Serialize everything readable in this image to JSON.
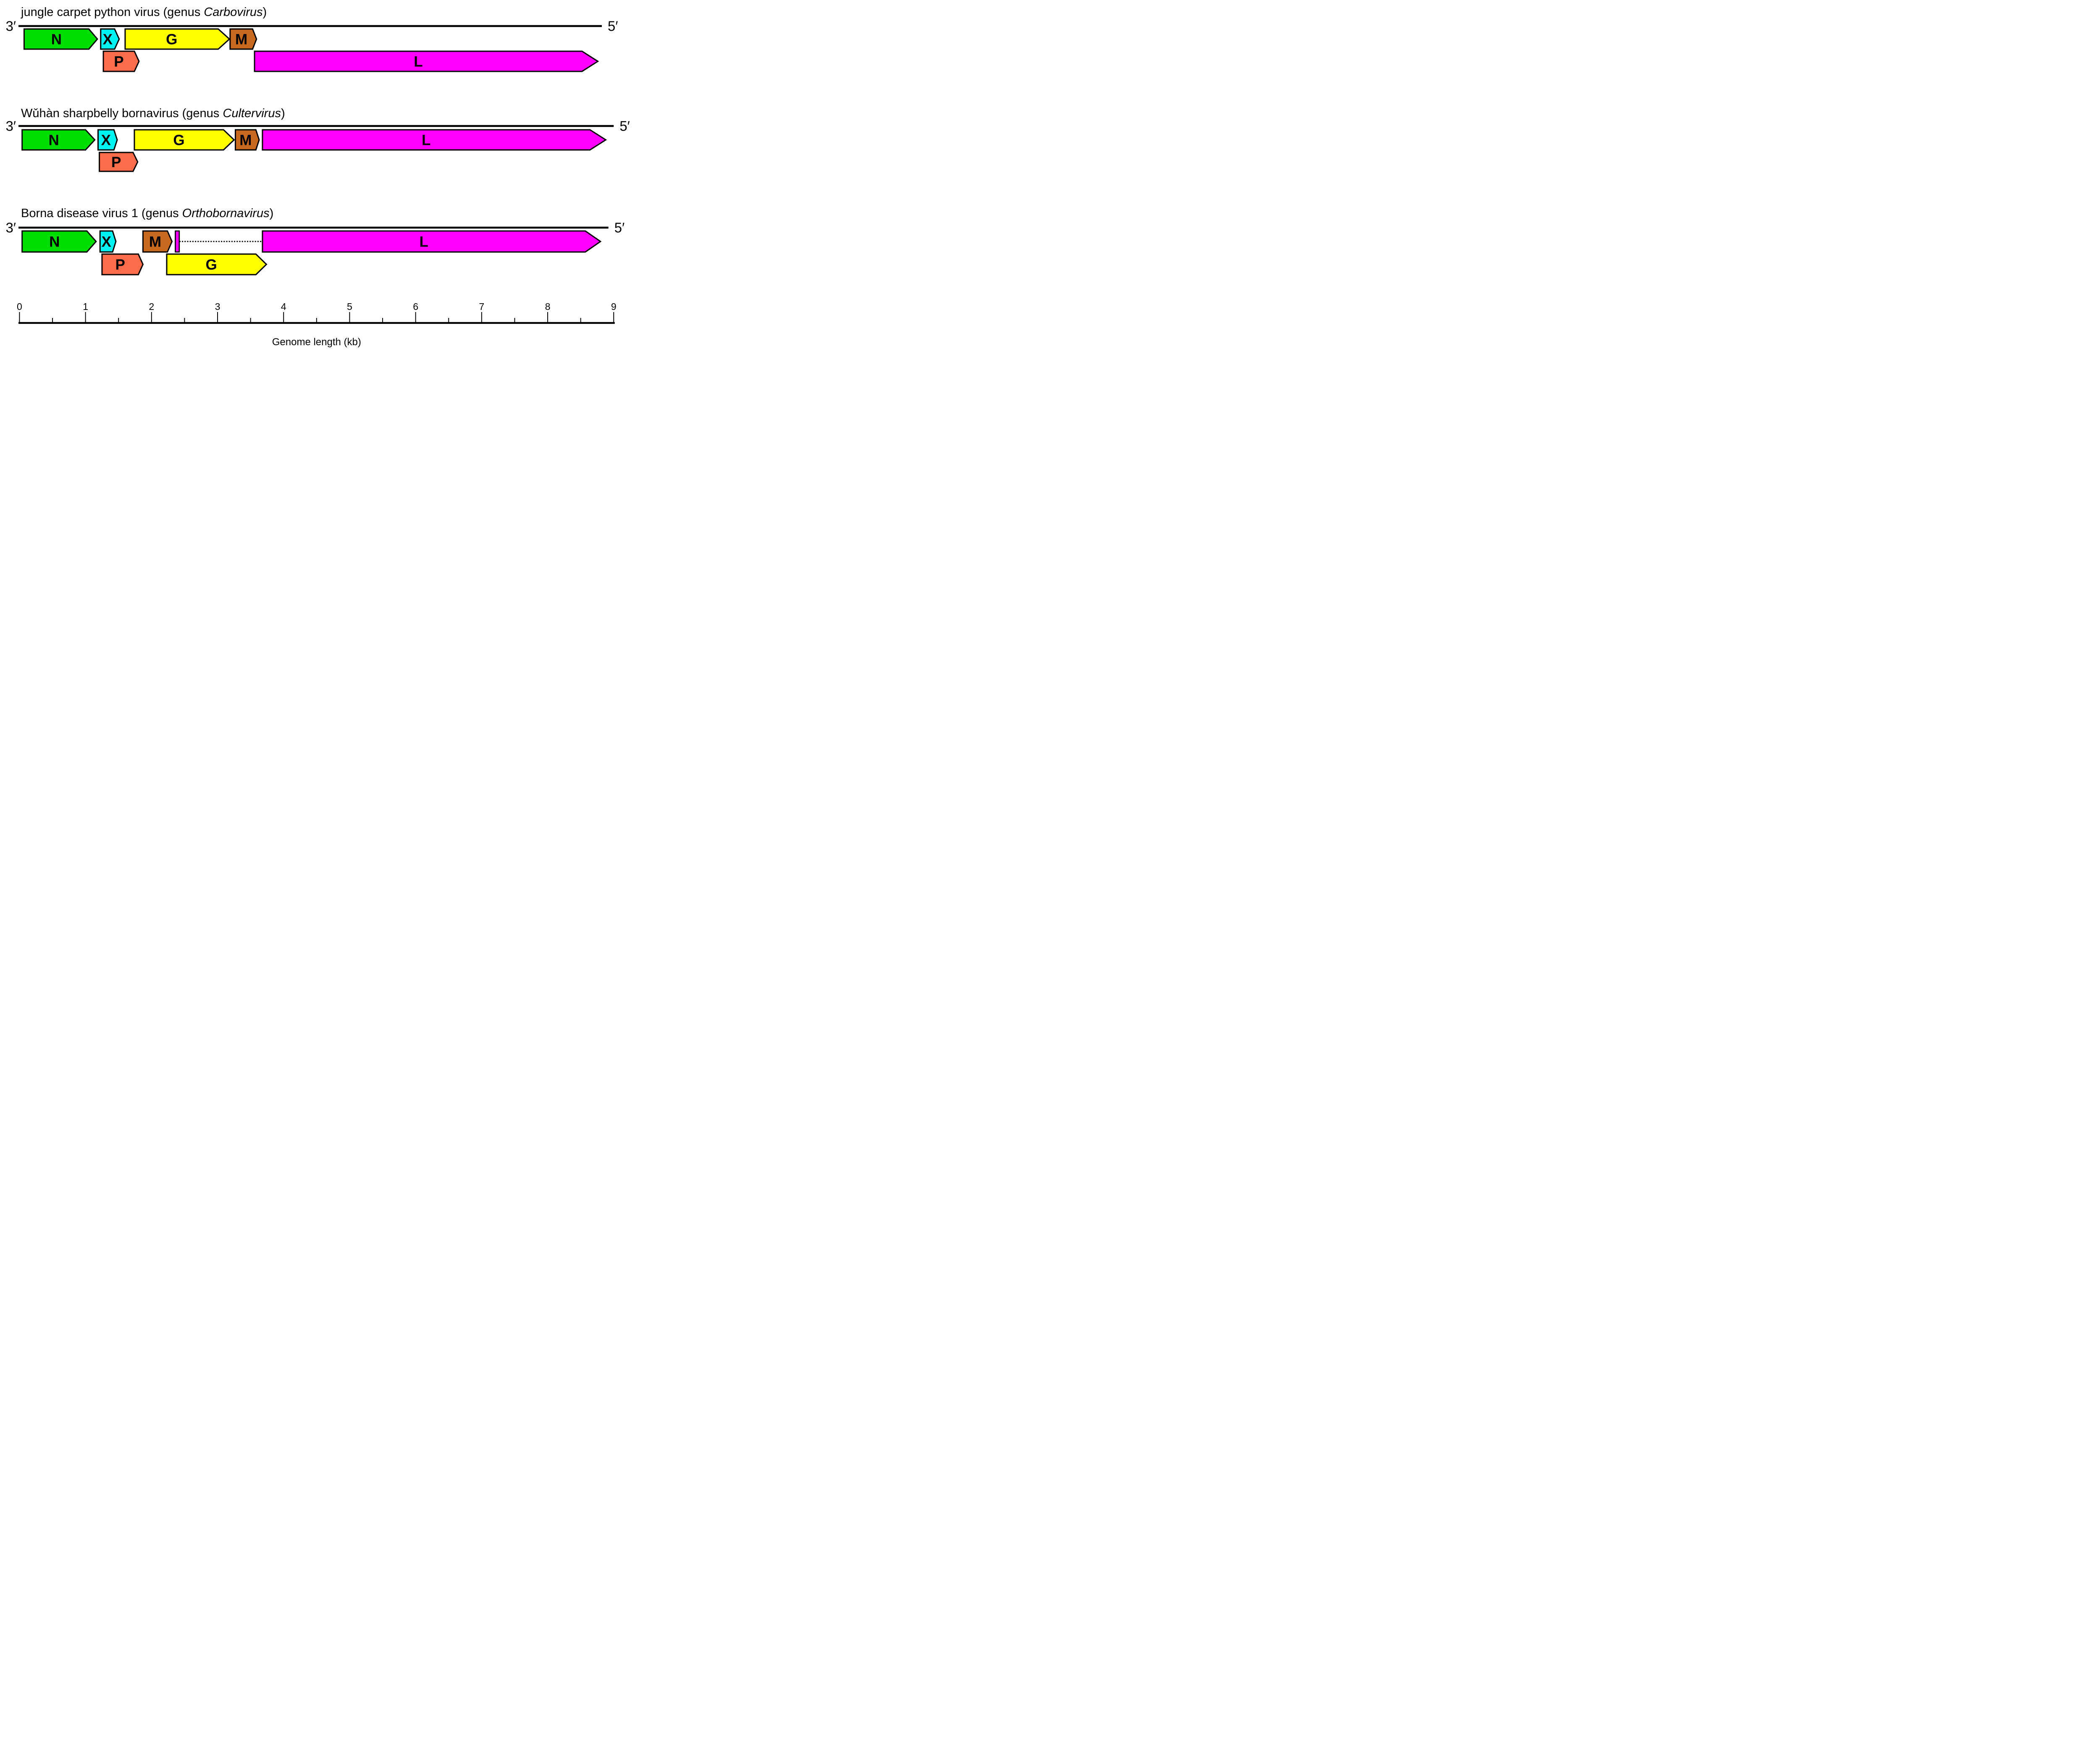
{
  "palette": {
    "N": "#00DD00",
    "X": "#00F2F2",
    "G": "#FFFF00",
    "M": "#C7691F",
    "P": "#FB6C4B",
    "L": "#FF00FF",
    "outline": "#000000"
  },
  "end_labels": {
    "left": "3′",
    "right": "5′"
  },
  "axis": {
    "label": "Genome length (kb)",
    "min": 0,
    "max": 9,
    "major_ticks": [
      0,
      1,
      2,
      3,
      4,
      5,
      6,
      7,
      8,
      9
    ],
    "minor_tick_step": 0.5
  },
  "chart_data": {
    "type": "genome-map",
    "unit": "kb",
    "rows": [
      {
        "name": "jungle-carpet-python-virus",
        "title_prefix": "jungle carpet python virus (genus ",
        "title_genus": "Carbovirus",
        "title_suffix": ")",
        "genome_line_end_kb": 8.82,
        "genes": [
          {
            "label": "N",
            "color": "N",
            "lane": "top",
            "start_kb": 0.07,
            "body_kb": 1.05,
            "tip_kb": 1.18
          },
          {
            "label": "X",
            "color": "X",
            "lane": "top",
            "start_kb": 1.23,
            "body_kb": 1.44,
            "tip_kb": 1.51
          },
          {
            "label": "G",
            "color": "G",
            "lane": "top",
            "start_kb": 1.6,
            "body_kb": 3.01,
            "tip_kb": 3.18
          },
          {
            "label": "M",
            "color": "M",
            "lane": "top",
            "start_kb": 3.19,
            "body_kb": 3.53,
            "tip_kb": 3.59
          },
          {
            "label": "P",
            "color": "P",
            "lane": "bottom",
            "start_kb": 1.27,
            "body_kb": 1.74,
            "tip_kb": 1.81
          },
          {
            "label": "L",
            "color": "L",
            "lane": "bottom",
            "start_kb": 3.56,
            "body_kb": 8.52,
            "tip_kb": 8.76
          }
        ]
      },
      {
        "name": "wuhan-sharpbelly-bornavirus",
        "title_prefix": "Wǔhàn sharpbelly bornavirus (genus ",
        "title_genus": "Cultervirus",
        "title_suffix": ")",
        "genome_line_end_kb": 9.0,
        "genes": [
          {
            "label": "N",
            "color": "N",
            "lane": "top",
            "start_kb": 0.04,
            "body_kb": 1.0,
            "tip_kb": 1.14
          },
          {
            "label": "X",
            "color": "X",
            "lane": "top",
            "start_kb": 1.19,
            "body_kb": 1.43,
            "tip_kb": 1.48
          },
          {
            "label": "G",
            "color": "G",
            "lane": "top",
            "start_kb": 1.74,
            "body_kb": 3.09,
            "tip_kb": 3.25
          },
          {
            "label": "M",
            "color": "M",
            "lane": "top",
            "start_kb": 3.27,
            "body_kb": 3.58,
            "tip_kb": 3.63
          },
          {
            "label": "L",
            "color": "L",
            "lane": "top",
            "start_kb": 3.68,
            "body_kb": 8.64,
            "tip_kb": 8.88
          },
          {
            "label": "P",
            "color": "P",
            "lane": "bottom",
            "start_kb": 1.21,
            "body_kb": 1.72,
            "tip_kb": 1.79
          }
        ]
      },
      {
        "name": "borna-disease-virus-1",
        "title_prefix": "Borna disease virus 1 (genus ",
        "title_genus": "Orthobornavirus",
        "title_suffix": ")",
        "genome_line_end_kb": 8.92,
        "genes": [
          {
            "label": "N",
            "color": "N",
            "lane": "top",
            "start_kb": 0.04,
            "body_kb": 1.02,
            "tip_kb": 1.16
          },
          {
            "label": "X",
            "color": "X",
            "lane": "top",
            "start_kb": 1.22,
            "body_kb": 1.41,
            "tip_kb": 1.46
          },
          {
            "label": "M",
            "color": "M",
            "lane": "top",
            "start_kb": 1.87,
            "body_kb": 2.24,
            "tip_kb": 2.31
          },
          {
            "label": "L",
            "color": "L",
            "lane": "top",
            "start_kb": 3.68,
            "body_kb": 8.57,
            "tip_kb": 8.8
          },
          {
            "label": "P",
            "color": "P",
            "lane": "bottom",
            "start_kb": 1.25,
            "body_kb": 1.8,
            "tip_kb": 1.87
          },
          {
            "label": "G",
            "color": "G",
            "lane": "bottom",
            "start_kb": 2.23,
            "body_kb": 3.58,
            "tip_kb": 3.74
          }
        ],
        "exon_sliver": {
          "color": "L",
          "lane": "top",
          "start_kb": 2.36,
          "end_kb": 2.42
        },
        "intron_connector": {
          "style": "dotted",
          "start_kb": 2.42,
          "end_kb": 3.68
        }
      }
    ]
  }
}
